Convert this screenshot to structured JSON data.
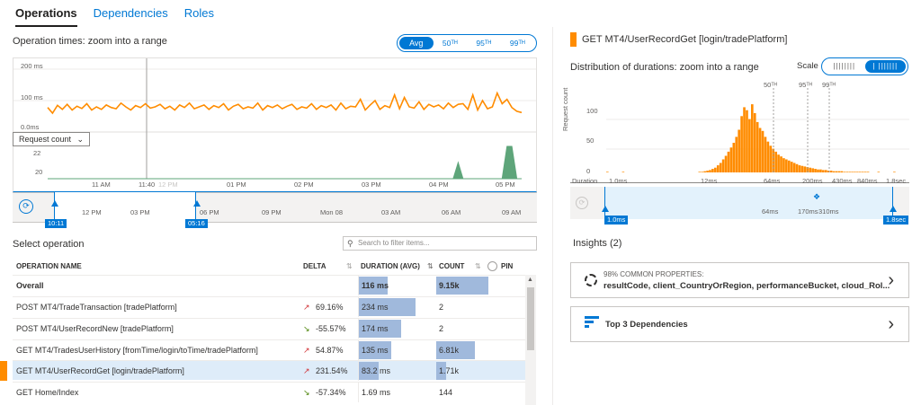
{
  "tabs": [
    "Operations",
    "Dependencies",
    "Roles"
  ],
  "left": {
    "title": "Operation times: zoom into a range",
    "percentiles": [
      "Avg",
      "50ᵀᴴ",
      "95ᵀᴴ",
      "99ᵀᴴ"
    ],
    "chart_y_labels": [
      "200 ms",
      "100 ms",
      "0.0ms"
    ],
    "request_count_select": "Request count",
    "count_y_labels": [
      "22",
      "20"
    ],
    "time_axis": [
      "11 AM",
      "11:40",
      "12 PM",
      "01 PM",
      "02 PM",
      "03 PM",
      "04 PM",
      "05 PM"
    ],
    "brush_axis": [
      "12 PM",
      "03 PM",
      "06 PM",
      "09 PM",
      "Mon 08",
      "03 AM",
      "06 AM",
      "09 AM"
    ],
    "brush_start": "10:11",
    "brush_end": "05:16",
    "select_operation": "Select operation",
    "search_placeholder": "Search to filter items...",
    "columns": [
      "OPERATION NAME",
      "DELTA",
      "DURATION (AVG)",
      "COUNT",
      "PIN"
    ],
    "rows": [
      {
        "name": "Overall",
        "delta": "",
        "dir": "",
        "duration": "116 ms",
        "count": "9.15k",
        "dur_frac": 0.45,
        "cnt_frac": 0.58,
        "bold": true
      },
      {
        "name": "POST MT4/TradeTransaction [tradePlatform]",
        "delta": "69.16%",
        "dir": "up",
        "duration": "234 ms",
        "count": "2",
        "dur_frac": 0.9,
        "cnt_frac": 0.0
      },
      {
        "name": "POST MT4/UserRecordNew [tradePlatform]",
        "delta": "-55.57%",
        "dir": "down",
        "duration": "174 ms",
        "count": "2",
        "dur_frac": 0.67,
        "cnt_frac": 0.0
      },
      {
        "name": "GET MT4/TradesUserHistory [fromTime/login/toTime/tradePlatform]",
        "delta": "54.87%",
        "dir": "up",
        "duration": "135 ms",
        "count": "6.81k",
        "dur_frac": 0.52,
        "cnt_frac": 0.43
      },
      {
        "name": "GET MT4/UserRecordGet [login/tradePlatform]",
        "delta": "231.54%",
        "dir": "up",
        "duration": "83.2 ms",
        "count": "1.71k",
        "dur_frac": 0.32,
        "cnt_frac": 0.11,
        "selected": true
      },
      {
        "name": "GET Home/Index",
        "delta": "-57.34%",
        "dir": "down",
        "duration": "1.69 ms",
        "count": "144",
        "dur_frac": 0.0,
        "cnt_frac": 0.0
      }
    ]
  },
  "right": {
    "operation": "GET MT4/UserRecordGet [login/tradePlatform]",
    "dist_title": "Distribution of durations: zoom into a range",
    "scale_label": "Scale",
    "scale_options": [
      "||||||||",
      "| |||||||"
    ],
    "percentile_markers": [
      "50ᵀᴴ",
      "95ᵀᴴ",
      "99ᵀᴴ"
    ],
    "y_axis_title": "Request count",
    "y_labels": [
      "100",
      "50",
      "0"
    ],
    "duration_label": "Duration",
    "x_labels": [
      "1.0ms",
      "12ms",
      "64ms",
      "200ms",
      "430ms",
      "840ms",
      "1.8sec"
    ],
    "brush_labels": [
      "64ms",
      "170ms",
      "310ms"
    ],
    "brush_start": "1.0ms",
    "brush_end": "1.8sec",
    "insights_title": "Insights (2)",
    "insight1_title": "98% COMMON PROPERTIES:",
    "insight1_text": "resultCode, client_CountryOrRegion, performanceBucket, cloud_Rol...",
    "insight2_text": "Top 3 Dependencies"
  },
  "colors": {
    "accent": "#0078d4",
    "line": "#ff8c00",
    "count": "#5ea57a",
    "bar": "#a0b9dc",
    "up": "#d13438",
    "down": "#498205"
  },
  "chart_data": [
    {
      "type": "line",
      "title": "Operation times: zoom into a range",
      "ylabel": "",
      "ylim": [
        0,
        200
      ],
      "series": [
        {
          "values": [
            78,
            60,
            85,
            72,
            88,
            70,
            82,
            75,
            90,
            70,
            80,
            72,
            86,
            78,
            74,
            92,
            80,
            70,
            84,
            78,
            90,
            76,
            80,
            88,
            74,
            82,
            70,
            86,
            78,
            92,
            74,
            80,
            86,
            72,
            84,
            78,
            90,
            70,
            82,
            88,
            74,
            80,
            76,
            92,
            70,
            84,
            78,
            86,
            74,
            82,
            88,
            72,
            80,
            76,
            90,
            72,
            84,
            78,
            86,
            70,
            92,
            74,
            82,
            80,
            104,
            70,
            86,
            100,
            72,
            84,
            78,
            118,
            74,
            110,
            80,
            76,
            96,
            72,
            88,
            80,
            86,
            74,
            92,
            78,
            88,
            90,
            72,
            118,
            70,
            100,
            74,
            80,
            124,
            90,
            104,
            78,
            66,
            62
          ]
        }
      ]
    },
    {
      "type": "area",
      "title": "",
      "ylabel": "Request count",
      "ylim": [
        19,
        23
      ],
      "series": [
        {
          "values": [
            19,
            19,
            19,
            19,
            19,
            19,
            19,
            19,
            19,
            19,
            19,
            19,
            19,
            19,
            19,
            19,
            19,
            19,
            19,
            19,
            19,
            19,
            19,
            19,
            19,
            19,
            19,
            19,
            19,
            19,
            19,
            19,
            19,
            19,
            19,
            19,
            19,
            19,
            19,
            19,
            19,
            19,
            19,
            19,
            19,
            19,
            19,
            19,
            19,
            19,
            19,
            19,
            19,
            19,
            19,
            19,
            19,
            19,
            19,
            19,
            19,
            19,
            19,
            19,
            19,
            19,
            19,
            19,
            19,
            19,
            19,
            19,
            19,
            19,
            19,
            19,
            19,
            19,
            19,
            19,
            19,
            19,
            19,
            19,
            21,
            19,
            19,
            19,
            19,
            19,
            19,
            19,
            19,
            19,
            23,
            23,
            19,
            19
          ]
        }
      ]
    },
    {
      "type": "bar",
      "title": "Distribution of durations: zoom into a range",
      "ylabel": "Request count",
      "ylim": [
        0,
        140
      ],
      "values": [
        1,
        0,
        0,
        0,
        0,
        0,
        1,
        0,
        0,
        0,
        0,
        0,
        0,
        0,
        0,
        0,
        0,
        0,
        0,
        0,
        0,
        0,
        0,
        0,
        0,
        0,
        0,
        0,
        0,
        0,
        0,
        0,
        0,
        0,
        0,
        1,
        1,
        2,
        3,
        4,
        6,
        8,
        12,
        16,
        22,
        28,
        35,
        42,
        50,
        60,
        72,
        95,
        110,
        105,
        90,
        115,
        100,
        85,
        75,
        70,
        60,
        52,
        45,
        40,
        35,
        30,
        27,
        24,
        22,
        20,
        18,
        16,
        14,
        12,
        11,
        10,
        9,
        8,
        7,
        6,
        5,
        5,
        4,
        4,
        3,
        3,
        2,
        2,
        2,
        2,
        1,
        1,
        1,
        1,
        1,
        1,
        1,
        1,
        1,
        1,
        0,
        0,
        0,
        1,
        0,
        0,
        0,
        0,
        0,
        1
      ]
    }
  ]
}
